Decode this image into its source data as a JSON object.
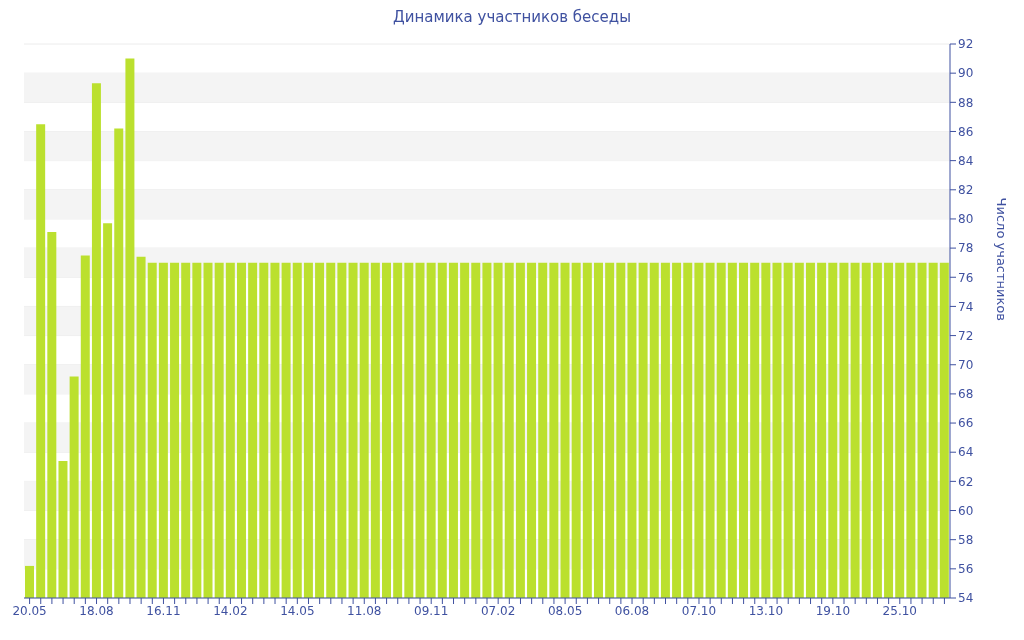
{
  "chart_data": {
    "type": "bar",
    "title": "Динамика участников беседы",
    "ylabel": "Число участников",
    "categories": [
      "20.05",
      null,
      null,
      null,
      null,
      null,
      "18.08",
      null,
      null,
      null,
      null,
      null,
      "16.11",
      null,
      null,
      null,
      null,
      null,
      "14.02",
      null,
      null,
      null,
      null,
      null,
      "14.05",
      null,
      null,
      null,
      null,
      null,
      "11.08",
      null,
      null,
      null,
      null,
      null,
      "09.11",
      null,
      null,
      null,
      null,
      null,
      "07.02",
      null,
      null,
      null,
      null,
      null,
      "08.05",
      null,
      null,
      null,
      null,
      null,
      "06.08",
      null,
      null,
      null,
      null,
      null,
      "07.10",
      null,
      null,
      null,
      null,
      null,
      "13.10",
      null,
      null,
      null,
      null,
      null,
      "19.10",
      null,
      null,
      null,
      null,
      null,
      "25.10",
      null,
      null,
      null,
      null
    ],
    "values": [
      56.2,
      86.5,
      79.1,
      63.4,
      69.2,
      77.5,
      89.3,
      79.7,
      86.2,
      91.0,
      77.4,
      77,
      77,
      77,
      77,
      77,
      77,
      77,
      77,
      77,
      77,
      77,
      77,
      77,
      77,
      77,
      77,
      77,
      77,
      77,
      77,
      77,
      77,
      77,
      77,
      77,
      77,
      77,
      77,
      77,
      77,
      77,
      77,
      77,
      77,
      77,
      77,
      77,
      77,
      77,
      77,
      77,
      77,
      77,
      77,
      77,
      77,
      77,
      77,
      77,
      77,
      77,
      77,
      77,
      77,
      77,
      77,
      77,
      77,
      77,
      77,
      77,
      77,
      77,
      77,
      77,
      77,
      77,
      77,
      77,
      77,
      77,
      77
    ],
    "color": "#bbe02e",
    "ylim": [
      54,
      92
    ],
    "yticks": [
      54,
      56,
      58,
      60,
      62,
      64,
      66,
      68,
      70,
      72,
      74,
      76,
      78,
      80,
      82,
      84,
      86,
      88,
      90,
      92
    ],
    "grid": "y"
  }
}
